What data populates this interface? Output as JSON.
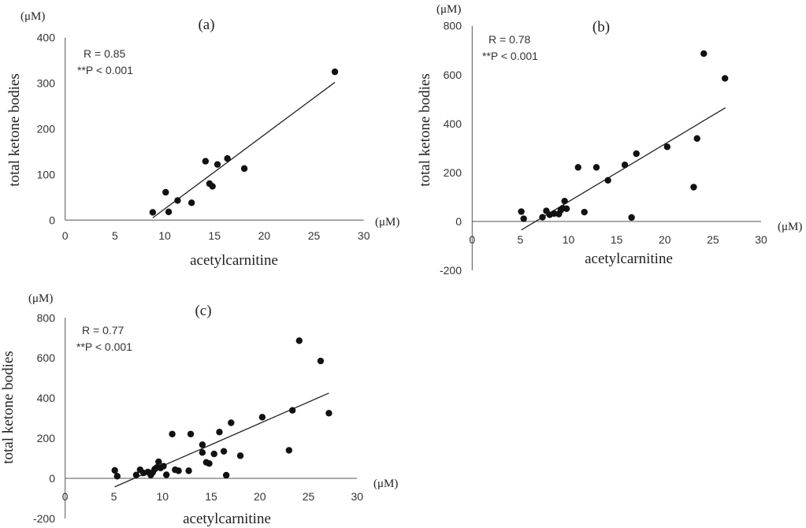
{
  "chart_data": [
    {
      "type": "scatter",
      "title": "(a)",
      "xlabel": "acetylcarnitine",
      "ylabel": "total ketone bodies",
      "x_unit": "(μM)",
      "y_unit": "(μM)",
      "xlim": [
        0,
        30
      ],
      "ylim": [
        0,
        400
      ],
      "xticks": [
        "0",
        "5",
        "10",
        "15",
        "20",
        "25",
        "30"
      ],
      "yticks": [
        "0",
        "100",
        "200",
        "300",
        "400"
      ],
      "annotation": {
        "r": "R = 0.85",
        "p": "**P < 0.001"
      },
      "grid": false,
      "points": [
        [
          8.8,
          17
        ],
        [
          10.1,
          61
        ],
        [
          10.4,
          18
        ],
        [
          11.3,
          43
        ],
        [
          12.7,
          38
        ],
        [
          14.1,
          129
        ],
        [
          14.5,
          80
        ],
        [
          14.8,
          74
        ],
        [
          15.3,
          122
        ],
        [
          16.3,
          135
        ],
        [
          18.0,
          113
        ],
        [
          27.1,
          325
        ]
      ],
      "trendline": [
        [
          8.8,
          5
        ],
        [
          27.1,
          302
        ]
      ]
    },
    {
      "type": "scatter",
      "title": "(b)",
      "xlabel": "acetylcarnitine",
      "ylabel": "total ketone bodies",
      "x_unit": "(μM)",
      "y_unit": "(μM)",
      "xlim": [
        0,
        30
      ],
      "ylim": [
        -200,
        800
      ],
      "xticks": [
        "0",
        "5",
        "10",
        "15",
        "20",
        "25",
        "30"
      ],
      "yticks": [
        "-200",
        "0",
        "200",
        "400",
        "600",
        "800"
      ],
      "annotation": {
        "r": "R = 0.78",
        "p": "**P < 0.001"
      },
      "grid": false,
      "points": [
        [
          5.1,
          40
        ],
        [
          5.35,
          11
        ],
        [
          7.3,
          17
        ],
        [
          7.7,
          43
        ],
        [
          8.05,
          27
        ],
        [
          8.5,
          32
        ],
        [
          9.0,
          30
        ],
        [
          9.2,
          46
        ],
        [
          9.4,
          54
        ],
        [
          9.6,
          83
        ],
        [
          9.8,
          52
        ],
        [
          11.0,
          221
        ],
        [
          11.65,
          38
        ],
        [
          12.9,
          221
        ],
        [
          14.1,
          168
        ],
        [
          15.85,
          231
        ],
        [
          16.55,
          16
        ],
        [
          17.05,
          277
        ],
        [
          20.25,
          305
        ],
        [
          23.0,
          140
        ],
        [
          23.35,
          339
        ],
        [
          24.05,
          686
        ],
        [
          26.25,
          585
        ]
      ],
      "trendline": [
        [
          5.1,
          -35
        ],
        [
          26.3,
          465
        ]
      ]
    },
    {
      "type": "scatter",
      "title": "(c)",
      "xlabel": "acetylcarnitine",
      "ylabel": "total ketone bodies",
      "x_unit": "(μM)",
      "y_unit": "(μM)",
      "xlim": [
        0,
        30
      ],
      "ylim": [
        -200,
        800
      ],
      "xticks": [
        "0",
        "5",
        "10",
        "15",
        "20",
        "25",
        "30"
      ],
      "yticks": [
        "-200",
        "0",
        "200",
        "400",
        "600",
        "800"
      ],
      "annotation": {
        "r": "R = 0.77",
        "p": "**P < 0.001"
      },
      "grid": false,
      "points": [
        [
          5.1,
          40
        ],
        [
          5.35,
          11
        ],
        [
          7.3,
          17
        ],
        [
          7.7,
          43
        ],
        [
          8.05,
          27
        ],
        [
          8.5,
          32
        ],
        [
          9.0,
          30
        ],
        [
          9.2,
          46
        ],
        [
          9.4,
          54
        ],
        [
          9.6,
          83
        ],
        [
          9.8,
          52
        ],
        [
          11.0,
          221
        ],
        [
          11.65,
          38
        ],
        [
          12.9,
          221
        ],
        [
          14.1,
          168
        ],
        [
          15.85,
          231
        ],
        [
          16.55,
          16
        ],
        [
          17.05,
          277
        ],
        [
          20.25,
          305
        ],
        [
          23.0,
          140
        ],
        [
          23.35,
          339
        ],
        [
          24.05,
          686
        ],
        [
          26.25,
          585
        ],
        [
          8.8,
          17
        ],
        [
          10.1,
          61
        ],
        [
          10.4,
          18
        ],
        [
          11.3,
          43
        ],
        [
          12.7,
          38
        ],
        [
          14.1,
          129
        ],
        [
          14.5,
          80
        ],
        [
          14.8,
          74
        ],
        [
          15.3,
          122
        ],
        [
          16.3,
          135
        ],
        [
          18.0,
          113
        ],
        [
          27.1,
          325
        ]
      ],
      "trendline": [
        [
          5.1,
          -42
        ],
        [
          27.1,
          425
        ]
      ]
    }
  ]
}
